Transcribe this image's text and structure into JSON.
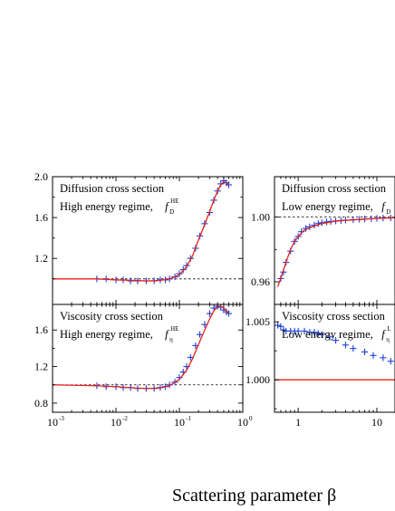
{
  "colors": {
    "fit": "#e8201c",
    "data": "#1f3fd6",
    "axis": "#000000",
    "ref": "#000000"
  },
  "xlabel": "Scattering parameter β",
  "chart_data": [
    {
      "type": "scatter",
      "title_lines": [
        "Diffusion cross section",
        "High energy regime,"
      ],
      "symbol_main": "f",
      "symbol_sub": "D",
      "symbol_sup": "HE",
      "xscale": "log",
      "xlim": [
        0.001,
        1
      ],
      "ylim": [
        0.75,
        2.0
      ],
      "yticks": [
        1.2,
        1.6,
        2.0
      ],
      "ytick_labels": [
        "1.2",
        "1.6",
        "2.0"
      ],
      "xticks": [
        0.001,
        0.01,
        0.1,
        1
      ],
      "xtick_labels": [],
      "reference_y": 1.0,
      "series": [
        {
          "kind": "markers",
          "x": [
            0.001,
            0.005,
            0.007,
            0.01,
            0.013,
            0.017,
            0.022,
            0.03,
            0.04,
            0.05,
            0.06,
            0.07,
            0.085,
            0.1,
            0.115,
            0.13,
            0.15,
            0.18,
            0.21,
            0.25,
            0.3,
            0.35,
            0.4,
            0.45,
            0.5,
            0.55,
            0.6
          ],
          "y": [
            1.0,
            1.0,
            1.0,
            0.99,
            0.99,
            0.98,
            0.98,
            0.98,
            0.98,
            0.99,
            0.99,
            1.0,
            1.02,
            1.05,
            1.09,
            1.13,
            1.2,
            1.3,
            1.42,
            1.54,
            1.65,
            1.77,
            1.86,
            1.93,
            1.96,
            1.94,
            1.92
          ]
        },
        {
          "kind": "line",
          "x": [
            0.001,
            0.005,
            0.01,
            0.02,
            0.03,
            0.05,
            0.07,
            0.1,
            0.13,
            0.16,
            0.2,
            0.25,
            0.3,
            0.35,
            0.4,
            0.45,
            0.5,
            0.55,
            0.6
          ],
          "y": [
            1.0,
            1.0,
            0.99,
            0.985,
            0.98,
            0.985,
            1.0,
            1.04,
            1.12,
            1.22,
            1.38,
            1.53,
            1.66,
            1.77,
            1.86,
            1.92,
            1.95,
            1.94,
            1.92
          ]
        }
      ]
    },
    {
      "type": "scatter",
      "title_lines": [
        "Viscosity cross section",
        "High energy regime,"
      ],
      "symbol_main": "f",
      "symbol_sub": "η",
      "symbol_sup": "HE",
      "xscale": "log",
      "xlim": [
        0.001,
        1
      ],
      "ylim": [
        0.7,
        1.88
      ],
      "yticks": [
        0.8,
        1.2,
        1.6
      ],
      "ytick_labels": [
        "0.8",
        "1.2",
        "1.6"
      ],
      "xticks": [
        0.001,
        0.01,
        0.1,
        1
      ],
      "xtick_labels": [
        "10",
        "10",
        "10",
        "10"
      ],
      "xtick_exponents": [
        "-3",
        "-2",
        "-1",
        "0"
      ],
      "reference_y": 1.0,
      "series": [
        {
          "kind": "markers",
          "x": [
            0.001,
            0.005,
            0.007,
            0.01,
            0.013,
            0.017,
            0.022,
            0.03,
            0.04,
            0.05,
            0.06,
            0.07,
            0.085,
            0.1,
            0.115,
            0.13,
            0.15,
            0.18,
            0.21,
            0.25,
            0.3,
            0.35,
            0.4,
            0.45,
            0.5,
            0.55,
            0.6
          ],
          "y": [
            1.0,
            0.99,
            0.98,
            0.98,
            0.97,
            0.97,
            0.96,
            0.96,
            0.96,
            0.97,
            0.98,
            1.0,
            1.03,
            1.08,
            1.14,
            1.2,
            1.3,
            1.43,
            1.55,
            1.66,
            1.78,
            1.84,
            1.86,
            1.85,
            1.82,
            1.8,
            1.78
          ]
        },
        {
          "kind": "line",
          "x": [
            0.001,
            0.005,
            0.01,
            0.02,
            0.03,
            0.05,
            0.07,
            0.1,
            0.13,
            0.16,
            0.2,
            0.25,
            0.3,
            0.35,
            0.4,
            0.45,
            0.5,
            0.55,
            0.6
          ],
          "y": [
            1.0,
            0.99,
            0.98,
            0.965,
            0.96,
            0.965,
            0.99,
            1.06,
            1.16,
            1.28,
            1.44,
            1.6,
            1.72,
            1.81,
            1.86,
            1.86,
            1.84,
            1.81,
            1.78
          ]
        }
      ]
    },
    {
      "type": "scatter",
      "title_lines": [
        "Diffusion cross section",
        "Low energy regime,"
      ],
      "symbol_main": "f",
      "symbol_sub": "D",
      "symbol_sup": "",
      "xscale": "log",
      "xlim": [
        0.5,
        17
      ],
      "ylim": [
        0.946,
        1.025
      ],
      "yticks": [
        0.96,
        1.0
      ],
      "ytick_labels": [
        "0.96",
        "1.00"
      ],
      "xticks": [
        1,
        10
      ],
      "xtick_labels": [],
      "reference_y": 1.0,
      "series": [
        {
          "kind": "markers",
          "x": [
            0.6,
            0.65,
            0.7,
            0.8,
            0.9,
            1.0,
            1.1,
            1.25,
            1.4,
            1.6,
            1.8,
            2.0,
            2.3,
            2.6,
            3.0,
            3.5,
            4.0,
            5.0,
            6.0,
            7.0,
            8.5,
            10.0,
            12.0,
            15.0
          ],
          "y": [
            0.962,
            0.966,
            0.972,
            0.979,
            0.985,
            0.988,
            0.991,
            0.993,
            0.994,
            0.995,
            0.996,
            0.9965,
            0.997,
            0.9973,
            0.9976,
            0.9979,
            0.9981,
            0.9984,
            0.9986,
            0.9988,
            0.999,
            0.9992,
            0.9994,
            0.9995
          ]
        },
        {
          "kind": "line",
          "x": [
            0.55,
            0.6,
            0.7,
            0.8,
            0.9,
            1.0,
            1.2,
            1.5,
            2.0,
            3.0,
            4.0,
            6.0,
            8.0,
            10.0,
            13.0,
            17.0
          ],
          "y": [
            0.957,
            0.962,
            0.972,
            0.98,
            0.985,
            0.988,
            0.992,
            0.994,
            0.996,
            0.9975,
            0.998,
            0.9985,
            0.9989,
            0.9992,
            0.9994,
            0.9996
          ]
        }
      ]
    },
    {
      "type": "scatter",
      "title_lines": [
        "Viscosity cross section",
        "Low energy regime,"
      ],
      "symbol_main": "f",
      "symbol_sub": "η",
      "symbol_sup": "L",
      "xscale": "log",
      "xlim": [
        0.5,
        17
      ],
      "ylim": [
        0.9972,
        1.0065
      ],
      "yticks": [
        1.0,
        1.005
      ],
      "ytick_labels": [
        "1.000",
        "1.005"
      ],
      "xticks": [
        1,
        10
      ],
      "xtick_labels": [
        "1",
        "10"
      ],
      "reference_y": null,
      "series": [
        {
          "kind": "markers",
          "x": [
            0.55,
            0.6,
            0.65,
            0.7,
            0.8,
            0.9,
            1.0,
            1.2,
            1.4,
            1.6,
            1.8,
            2.0,
            2.5,
            3.0,
            4.0,
            5.0,
            7.0,
            9.0,
            12.0,
            15.0
          ],
          "y": [
            1.0047,
            1.0046,
            1.0043,
            1.0042,
            1.0042,
            1.0042,
            1.0042,
            1.0042,
            1.0041,
            1.0041,
            1.004,
            1.0039,
            1.0037,
            1.0034,
            1.003,
            1.0027,
            1.0024,
            1.0021,
            1.0019,
            1.0016
          ]
        },
        {
          "kind": "line",
          "x": [
            0.5,
            17
          ],
          "y": [
            1.0,
            1.0
          ]
        }
      ]
    }
  ]
}
